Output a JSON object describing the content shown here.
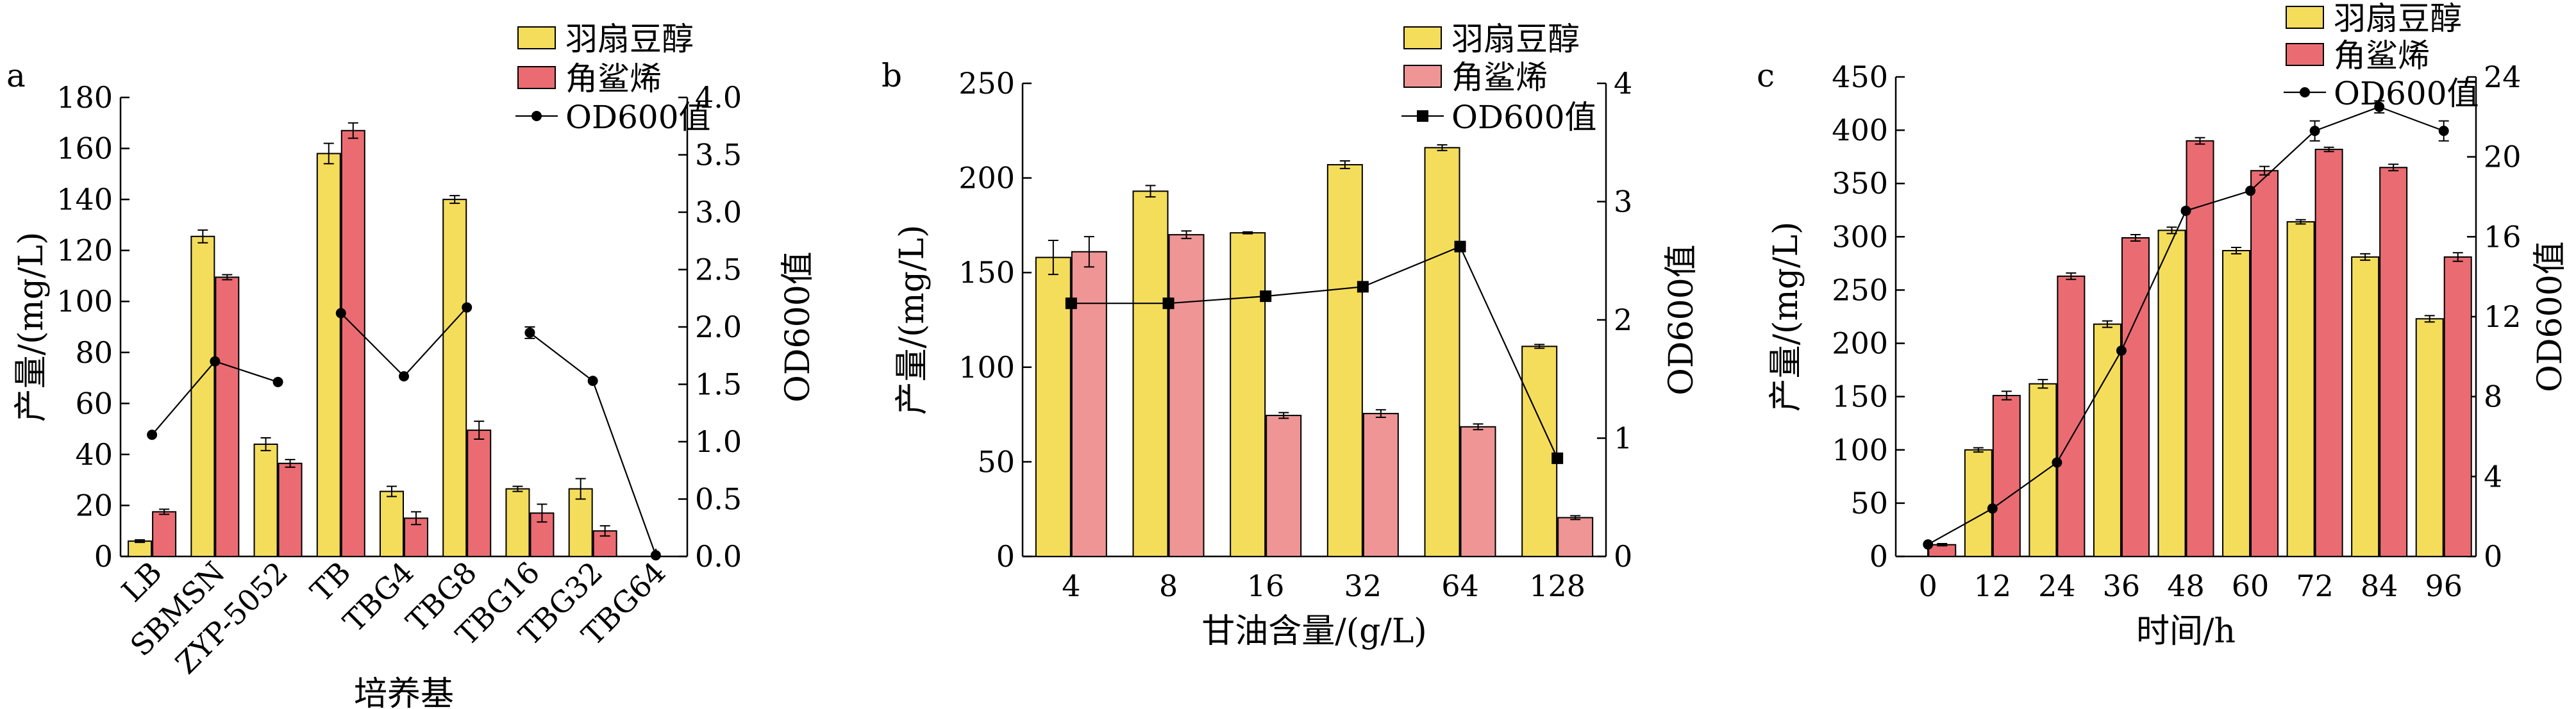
{
  "chart_data": [
    {
      "panel": "a",
      "type": "bar",
      "categories": [
        "LB",
        "SBMSN",
        "ZYP-5052",
        "TB",
        "TBG4",
        "TBG8",
        "TBG16",
        "TBG32",
        "TBG64"
      ],
      "xlabel": "培养基",
      "ylabel": "产量/(mg/L)",
      "y2label": "OD600值",
      "ylim": [
        0,
        180
      ],
      "y2lim": [
        0,
        4
      ],
      "yticks": [
        0,
        20,
        40,
        60,
        80,
        100,
        120,
        140,
        160,
        180
      ],
      "y2ticks": [
        "0.0",
        "0.5",
        "1.0",
        "1.5",
        "2.0",
        "2.5",
        "3.0",
        "3.5",
        "4.0"
      ],
      "legend": {
        "position": "top-right",
        "labels": [
          "羽扇豆醇",
          "角鲨烯",
          "OD600值"
        ]
      },
      "series": [
        {
          "name": "羽扇豆醇",
          "values": [
            6,
            125.5,
            44,
            158,
            25.5,
            140,
            26.5,
            26.5,
            0
          ],
          "errors": [
            0.5,
            2.5,
            2.5,
            4,
            2,
            1.5,
            1,
            4,
            0
          ],
          "color": "#f5dd5c"
        },
        {
          "name": "角鲨烯",
          "values": [
            17.5,
            109.5,
            36.5,
            167,
            15,
            49.5,
            17,
            10,
            0
          ],
          "errors": [
            1,
            1,
            1.5,
            3,
            2.5,
            3.5,
            3.5,
            2,
            0
          ],
          "color": "#ea6c72"
        },
        {
          "name": "OD600值",
          "axis": "right",
          "values": [
            1.06,
            1.7,
            1.52,
            2.12,
            1.57,
            2.17,
            1.95,
            1.53,
            0.01
          ],
          "errors": [
            0,
            0,
            0,
            0,
            0,
            0,
            0.05,
            0,
            0
          ]
        }
      ],
      "od_segments": [
        [
          0,
          2
        ],
        [
          3,
          5
        ],
        [
          6,
          8
        ]
      ]
    },
    {
      "panel": "b",
      "type": "bar",
      "categories": [
        "4",
        "8",
        "16",
        "32",
        "64",
        "128"
      ],
      "xlabel": "甘油含量/(g/L)",
      "ylabel": "产量/(mg/L)",
      "y2label": "OD600值",
      "ylim": [
        0,
        250
      ],
      "y2lim": [
        0,
        4
      ],
      "yticks": [
        0,
        50,
        100,
        150,
        200,
        250
      ],
      "y2ticks": [
        "0",
        "1",
        "2",
        "3",
        "4"
      ],
      "legend": {
        "position": "top-right",
        "labels": [
          "羽扇豆醇",
          "角鲨烯",
          "OD600值"
        ]
      },
      "series": [
        {
          "name": "羽扇豆醇",
          "values": [
            158,
            193,
            171,
            207,
            216,
            111
          ],
          "errors": [
            9,
            3,
            0.5,
            2,
            1.5,
            1
          ],
          "color": "#f5dd5c"
        },
        {
          "name": "角鲨烯",
          "values": [
            161,
            170,
            74.5,
            75.5,
            68.5,
            20.5
          ],
          "errors": [
            8,
            2,
            1.5,
            2,
            1.5,
            1
          ],
          "color": "#ef9595"
        },
        {
          "name": "OD600值",
          "axis": "right",
          "values": [
            2.14,
            2.14,
            2.2,
            2.28,
            2.62,
            0.83
          ],
          "errors": [
            0,
            0,
            0,
            0,
            0,
            0
          ]
        }
      ],
      "od_segments": [
        [
          0,
          5
        ]
      ]
    },
    {
      "panel": "c",
      "type": "bar",
      "categories": [
        "0",
        "12",
        "24",
        "36",
        "48",
        "60",
        "72",
        "84",
        "96"
      ],
      "xlabel": "时间/h",
      "ylabel": "产量/(mg/L)",
      "y2label": "OD600值",
      "ylim": [
        0,
        450
      ],
      "y2lim": [
        0,
        24
      ],
      "yticks": [
        0,
        50,
        100,
        150,
        200,
        250,
        300,
        350,
        400,
        450
      ],
      "y2ticks": [
        "0",
        "4",
        "8",
        "12",
        "16",
        "20",
        "24"
      ],
      "legend": {
        "position": "top-right",
        "labels": [
          "羽扇豆醇",
          "角鲨烯",
          "OD600值"
        ]
      },
      "series": [
        {
          "name": "羽扇豆醇",
          "values": [
            0,
            100,
            162,
            218,
            306,
            287,
            314,
            281,
            223
          ],
          "errors": [
            0,
            2,
            4,
            3,
            3,
            3,
            2,
            3,
            3
          ],
          "color": "#f5dd5c"
        },
        {
          "name": "角鲨烯",
          "values": [
            11,
            151,
            263,
            299,
            390,
            362,
            382,
            365,
            281
          ],
          "errors": [
            1,
            4,
            3,
            3,
            3,
            4,
            2,
            3,
            4
          ],
          "color": "#ea6c72"
        },
        {
          "name": "OD600值",
          "axis": "right",
          "values": [
            0.6,
            2.4,
            4.7,
            10.3,
            17.3,
            18.3,
            21.3,
            22.5,
            21.3
          ],
          "errors": [
            0,
            0,
            0,
            0,
            0,
            0,
            0.5,
            0.3,
            0.5
          ]
        }
      ],
      "od_segments": [
        [
          0,
          8
        ]
      ]
    }
  ]
}
